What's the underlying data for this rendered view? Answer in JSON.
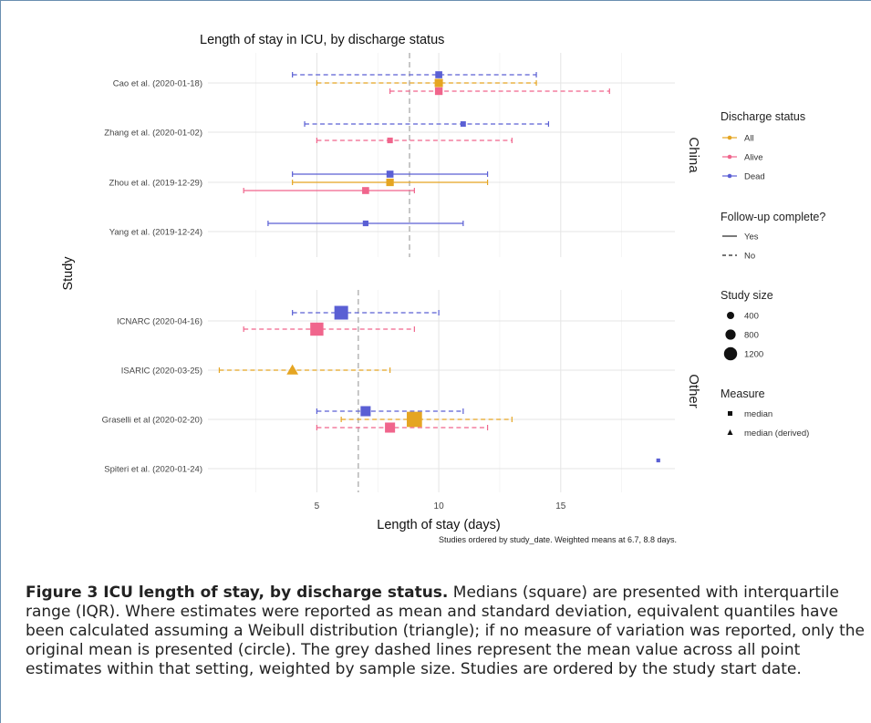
{
  "chart_data": {
    "type": "scatter",
    "title": "Length of stay in ICU, by discharge status",
    "xlabel": "Length of stay (days)",
    "ylabel": "Study",
    "note": "Studies ordered by study_date. Weighted means at 6.7, 8.8 days.",
    "xlim": [
      0,
      19
    ],
    "xticks": [
      5,
      10,
      15
    ],
    "grid": true,
    "legend_position": "right",
    "colors": {
      "All": "#e5a522",
      "Alive": "#f0658c",
      "Dead": "#5a5fd4",
      "ref_line": "#aaaaaa"
    },
    "legend": {
      "discharge": {
        "title": "Discharge status",
        "items": [
          "All",
          "Alive",
          "Dead"
        ]
      },
      "followup": {
        "title": "Follow-up complete?",
        "items": [
          "Yes",
          "No"
        ]
      },
      "size": {
        "title": "Study size",
        "items": [
          "400",
          "800",
          "1200"
        ],
        "values": [
          400,
          800,
          1200
        ]
      },
      "measure": {
        "title": "Measure",
        "items": [
          "median",
          "median (derived)"
        ]
      }
    },
    "panels": [
      {
        "name": "China",
        "ref_line": 8.8,
        "studies": [
          {
            "label": "Cao et al. (2020-01-18)",
            "points": [
              {
                "status": "Dead",
                "value": 10,
                "low": 4,
                "high": 14,
                "complete": false,
                "measure": "median",
                "size": 150
              },
              {
                "status": "All",
                "value": 10,
                "low": 5,
                "high": 14,
                "complete": false,
                "measure": "median",
                "size": 250
              },
              {
                "status": "Alive",
                "value": 10,
                "low": 8,
                "high": 17,
                "complete": false,
                "measure": "median",
                "size": 200
              }
            ]
          },
          {
            "label": "Zhang et al. (2020-01-02)",
            "points": [
              {
                "status": "Dead",
                "value": 11,
                "low": 4.5,
                "high": 14.5,
                "complete": false,
                "measure": "median",
                "size": 60
              },
              {
                "status": "Alive",
                "value": 8,
                "low": 5,
                "high": 13,
                "complete": false,
                "measure": "median",
                "size": 70
              }
            ]
          },
          {
            "label": "Zhou et al. (2019-12-29)",
            "points": [
              {
                "status": "Dead",
                "value": 8,
                "low": 4,
                "high": 12,
                "complete": true,
                "measure": "median",
                "size": 150
              },
              {
                "status": "All",
                "value": 8,
                "low": 4,
                "high": 12,
                "complete": true,
                "measure": "median",
                "size": 190
              },
              {
                "status": "Alive",
                "value": 7,
                "low": 2,
                "high": 9,
                "complete": true,
                "measure": "median",
                "size": 150
              }
            ]
          },
          {
            "label": "Yang et al. (2019-12-24)",
            "points": [
              {
                "status": "Dead",
                "value": 7,
                "low": 3,
                "high": 11,
                "complete": true,
                "measure": "median",
                "size": 70
              }
            ]
          }
        ]
      },
      {
        "name": "Other",
        "ref_line": 6.7,
        "studies": [
          {
            "label": "ICNARC (2020-04-16)",
            "points": [
              {
                "status": "Dead",
                "value": 6,
                "low": 4,
                "high": 10,
                "complete": false,
                "measure": "median",
                "size": 1000
              },
              {
                "status": "Alive",
                "value": 5,
                "low": 2,
                "high": 9,
                "complete": false,
                "measure": "median",
                "size": 900
              }
            ]
          },
          {
            "label": "ISARIC (2020-03-25)",
            "points": [
              {
                "status": "All",
                "value": 4,
                "low": 1,
                "high": 8,
                "complete": false,
                "measure": "median (derived)",
                "size": 350
              }
            ]
          },
          {
            "label": "Graselli et al (2020-02-20)",
            "points": [
              {
                "status": "Dead",
                "value": 7,
                "low": 5,
                "high": 11,
                "complete": false,
                "measure": "median",
                "size": 450
              },
              {
                "status": "All",
                "value": 9,
                "low": 6,
                "high": 13,
                "complete": false,
                "measure": "median",
                "size": 1300
              },
              {
                "status": "Alive",
                "value": 8,
                "low": 5,
                "high": 12,
                "complete": false,
                "measure": "median",
                "size": 450
              }
            ]
          },
          {
            "label": "Spiteri et al. (2020-01-24)",
            "points": [
              {
                "status": "Dead",
                "value": 19,
                "low": null,
                "high": null,
                "complete": false,
                "measure": "median",
                "size": 10
              }
            ]
          }
        ]
      }
    ]
  },
  "caption": {
    "bold": "Figure 3 ICU length of stay, by discharge status.",
    "text": " Medians (square) are presented with interquartile range (IQR). Where estimates were reported as mean and standard deviation, equivalent quantiles have been calculated assuming a Weibull distribution (triangle); if no measure of variation was reported, only the original mean is presented (circle). The grey dashed lines represent the mean value across all point estimates within that setting, weighted by sample size. Studies are ordered by the study start date."
  }
}
